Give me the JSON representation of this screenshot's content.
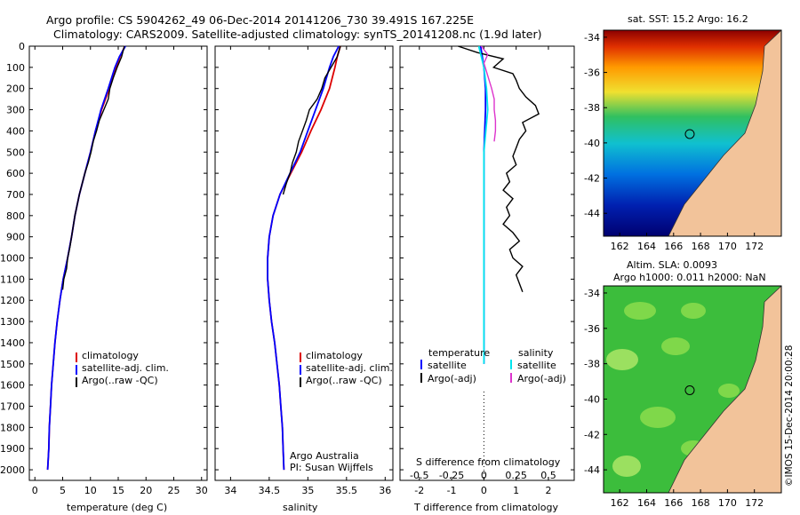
{
  "title_line1": "Argo profile: CS 5904262_49 06-Dec-2014 20141206_730 39.491S 167.225E",
  "title_line2": "Climatology: CARS2009. Satellite-adjusted climatology: synTS_20141208.nc (1.9d later)",
  "credit": "©IMOS 15-Dec-2014 20:00:28",
  "argo_org": "Argo Australia",
  "argo_pi": "PI: Susan Wijffels",
  "depth_ticks": [
    "0",
    "100",
    "200",
    "300",
    "400",
    "500",
    "600",
    "700",
    "800",
    "900",
    "1000",
    "1100",
    "1200",
    "1300",
    "1400",
    "1500",
    "1600",
    "1700",
    "1800",
    "1900",
    "2000"
  ],
  "colors": {
    "climatology": "#dd0000",
    "satellite": "#0000ff",
    "argo": "#000000",
    "sal_satellite": "#00e5ee",
    "sal_argo": "#dd33cc"
  },
  "chart_data": [
    {
      "type": "line",
      "panel": "temperature",
      "xlabel": "temperature (deg C)",
      "xticks": [
        "0",
        "5",
        "10",
        "15",
        "20",
        "25",
        "30"
      ],
      "xlim": [
        -1,
        31
      ],
      "ylim": [
        2050,
        0
      ],
      "legend": [
        "climatology",
        "satellite-adj. clim.",
        "Argo(..raw -QC)"
      ],
      "series": [
        {
          "name": "climatology",
          "depth": [
            0,
            50,
            100,
            200,
            300,
            400,
            500,
            600,
            700,
            800,
            900,
            1000,
            1100,
            1200,
            1300,
            1400,
            1500,
            1600,
            1700,
            1800,
            1900,
            2000
          ],
          "values": [
            16.2,
            15.3,
            14.6,
            13.4,
            12.0,
            10.9,
            10.0,
            9.0,
            8.0,
            7.2,
            6.6,
            5.9,
            5.1,
            4.5,
            4.0,
            3.6,
            3.3,
            3.0,
            2.8,
            2.6,
            2.5,
            2.3
          ]
        },
        {
          "name": "satellite-adj. clim.",
          "depth": [
            0,
            50,
            100,
            200,
            300,
            400,
            500,
            600,
            700,
            800,
            900,
            1000,
            1100,
            1200,
            1300,
            1400,
            1500,
            1600,
            1700,
            1800,
            1900,
            2000
          ],
          "values": [
            16.3,
            15.2,
            14.4,
            13.2,
            11.9,
            10.9,
            10.0,
            9.0,
            8.0,
            7.2,
            6.6,
            5.9,
            5.1,
            4.5,
            4.0,
            3.6,
            3.3,
            3.0,
            2.8,
            2.6,
            2.5,
            2.3
          ]
        },
        {
          "name": "Argo(..raw -QC)",
          "depth": [
            0,
            50,
            100,
            150,
            200,
            250,
            300,
            350,
            400,
            450,
            500,
            550,
            600,
            650,
            700,
            750,
            800,
            850,
            900,
            950,
            1000,
            1050,
            1100,
            1150
          ],
          "values": [
            16.1,
            15.6,
            14.8,
            14.1,
            13.5,
            13.2,
            12.4,
            11.6,
            11.1,
            10.5,
            10.1,
            9.6,
            9.0,
            8.5,
            8.0,
            7.6,
            7.2,
            6.9,
            6.6,
            6.3,
            5.9,
            5.7,
            5.2,
            5.0
          ]
        }
      ]
    },
    {
      "type": "line",
      "panel": "salinity",
      "xlabel": "salinity",
      "xticks": [
        "34",
        "34.5",
        "35",
        "35.5",
        "36"
      ],
      "xlim": [
        33.8,
        36.1
      ],
      "ylim": [
        2050,
        0
      ],
      "legend": [
        "climatology",
        "satellite-adj. clim.",
        "Argo(..raw -QC)"
      ],
      "series": [
        {
          "name": "climatology",
          "depth": [
            0,
            50,
            100,
            200,
            300,
            400,
            500,
            600,
            700,
            800,
            900,
            1000,
            1100,
            1200,
            1300,
            1400,
            1500,
            1600,
            1700,
            1800,
            1900,
            2000
          ],
          "values": [
            35.42,
            35.38,
            35.35,
            35.28,
            35.17,
            35.04,
            34.92,
            34.78,
            34.64,
            34.55,
            34.5,
            34.48,
            34.48,
            34.5,
            34.53,
            34.57,
            34.6,
            34.63,
            34.65,
            34.67,
            34.68,
            34.69
          ]
        },
        {
          "name": "satellite-adj. clim.",
          "depth": [
            0,
            50,
            100,
            200,
            300,
            400,
            500,
            600,
            700,
            800,
            900,
            1000,
            1100,
            1200,
            1300,
            1400,
            1500,
            1600,
            1700,
            1800,
            1900,
            2000
          ],
          "values": [
            35.4,
            35.33,
            35.28,
            35.2,
            35.1,
            35.0,
            34.9,
            34.77,
            34.64,
            34.55,
            34.5,
            34.48,
            34.48,
            34.5,
            34.53,
            34.57,
            34.6,
            34.63,
            34.65,
            34.67,
            34.68,
            34.69
          ]
        },
        {
          "name": "Argo(..raw -QC)",
          "depth": [
            0,
            50,
            100,
            150,
            200,
            250,
            300,
            350,
            400,
            450,
            500,
            550,
            600,
            650,
            700
          ],
          "values": [
            35.42,
            35.38,
            35.3,
            35.22,
            35.18,
            35.12,
            35.02,
            34.98,
            34.93,
            34.88,
            34.85,
            34.8,
            34.77,
            34.72,
            34.68
          ]
        }
      ]
    },
    {
      "type": "line",
      "panel": "difference",
      "xlabel": "T difference from climatology",
      "xlabel2": "S difference from climatology",
      "xticks": [
        "-2",
        "-1",
        "0",
        "1",
        "2"
      ],
      "xticks_s": [
        "-0.5",
        "-0.25",
        "0",
        "0.25",
        "0.5"
      ],
      "xlim": [
        -2.6,
        2.8
      ],
      "ylim": [
        2050,
        0
      ],
      "legend_t_title": "temperature",
      "legend_t": [
        "satellite",
        "Argo(-adj)"
      ],
      "legend_s_title": "salinity",
      "legend_s": [
        "satellite",
        "Argo(-adj)"
      ],
      "series": [
        {
          "name": "temperature satellite",
          "depth": [
            0,
            50,
            100,
            200,
            300,
            500,
            800,
            1100,
            1500
          ],
          "values": [
            -0.1,
            -0.05,
            0.0,
            0.05,
            0.05,
            0.0,
            0.0,
            0.0,
            0.0
          ]
        },
        {
          "name": "temperature Argo(-adj)",
          "depth": [
            0,
            30,
            60,
            100,
            130,
            160,
            200,
            240,
            280,
            320,
            360,
            400,
            440,
            480,
            520,
            560,
            600,
            640,
            680,
            720,
            760,
            800,
            840,
            880,
            920,
            960,
            1000,
            1040,
            1080,
            1120,
            1160
          ],
          "values": [
            -0.8,
            -0.2,
            0.6,
            0.3,
            0.9,
            1.0,
            1.1,
            1.3,
            1.6,
            1.7,
            1.2,
            1.3,
            1.1,
            1.0,
            0.9,
            1.0,
            0.7,
            0.8,
            0.6,
            0.9,
            0.7,
            0.8,
            0.6,
            0.9,
            1.1,
            0.8,
            0.9,
            1.2,
            1.0,
            1.1,
            1.2
          ]
        },
        {
          "name": "salinity satellite",
          "depth": [
            0,
            50,
            100,
            200,
            300,
            500,
            800,
            1100,
            1500
          ],
          "values": [
            -0.04,
            -0.02,
            0.0,
            0.02,
            0.03,
            0.0,
            0.0,
            0.0,
            0.0
          ]
        },
        {
          "name": "salinity Argo(-adj)",
          "depth": [
            0,
            40,
            80,
            120,
            160,
            200,
            250,
            300,
            350,
            400,
            450
          ],
          "values": [
            -0.02,
            0.03,
            0.0,
            0.02,
            0.04,
            0.06,
            0.08,
            0.08,
            0.09,
            0.09,
            0.08
          ]
        }
      ]
    }
  ],
  "sst_map": {
    "title": "sat. SST: 15.2 Argo: 16.2",
    "lat_ticks": [
      "-34",
      "-36",
      "-38",
      "-40",
      "-42",
      "-44"
    ],
    "lon_ticks": [
      "162",
      "164",
      "166",
      "168",
      "170",
      "172"
    ],
    "marker": {
      "lon": 167.2,
      "lat": -39.5
    }
  },
  "sla_map": {
    "title1": "Altim. SLA: 0.0093",
    "title2": "Argo h1000: 0.011 h2000: NaN",
    "lat_ticks": [
      "-34",
      "-36",
      "-38",
      "-40",
      "-42",
      "-44"
    ],
    "lon_ticks": [
      "162",
      "164",
      "166",
      "168",
      "170",
      "172"
    ],
    "marker": {
      "lon": 167.2,
      "lat": -39.5
    }
  }
}
